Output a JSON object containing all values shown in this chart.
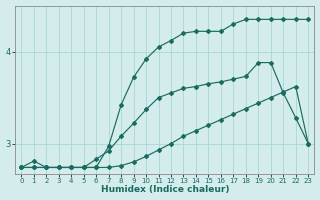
{
  "xlabel": "Humidex (Indice chaleur)",
  "background_color": "#d4edec",
  "grid_color": "#a8d8d4",
  "line_color": "#1a6b60",
  "xlim": [
    -0.5,
    23.5
  ],
  "ylim": [
    2.67,
    4.5
  ],
  "yticks": [
    3,
    4
  ],
  "xticks": [
    0,
    1,
    2,
    3,
    4,
    5,
    6,
    7,
    8,
    9,
    10,
    11,
    12,
    13,
    14,
    15,
    16,
    17,
    18,
    19,
    20,
    21,
    22,
    23
  ],
  "line1_x": [
    0,
    1,
    2,
    3,
    4,
    5,
    6,
    7,
    8,
    9,
    10,
    11,
    12,
    13,
    14,
    15,
    16,
    17,
    18,
    19,
    20,
    21,
    22,
    23
  ],
  "line1_y": [
    2.74,
    2.74,
    2.74,
    2.74,
    2.74,
    2.74,
    2.74,
    2.74,
    2.76,
    2.8,
    2.86,
    2.93,
    3.0,
    3.08,
    3.14,
    3.2,
    3.26,
    3.32,
    3.38,
    3.44,
    3.5,
    3.56,
    3.62,
    3.0
  ],
  "line2_x": [
    0,
    1,
    2,
    3,
    4,
    5,
    6,
    7,
    8,
    9,
    10,
    11,
    12,
    13,
    14,
    15,
    16,
    17,
    18,
    19,
    20,
    21,
    22,
    23
  ],
  "line2_y": [
    2.74,
    2.74,
    2.74,
    2.74,
    2.74,
    2.74,
    2.83,
    2.92,
    3.08,
    3.22,
    3.37,
    3.5,
    3.55,
    3.6,
    3.62,
    3.65,
    3.67,
    3.7,
    3.73,
    3.88,
    3.88,
    3.55,
    3.28,
    3.0
  ],
  "line3_x": [
    0,
    1,
    2,
    3,
    4,
    5,
    6,
    7,
    8,
    9,
    10,
    11,
    12,
    13,
    14,
    15,
    16,
    17,
    18,
    19,
    20,
    21,
    22,
    23
  ],
  "line3_y": [
    2.74,
    2.81,
    2.74,
    2.74,
    2.74,
    2.74,
    2.74,
    2.97,
    3.42,
    3.72,
    3.92,
    4.05,
    4.12,
    4.2,
    4.22,
    4.22,
    4.22,
    4.3,
    4.35,
    4.35,
    4.35,
    4.35,
    4.35,
    4.35
  ]
}
